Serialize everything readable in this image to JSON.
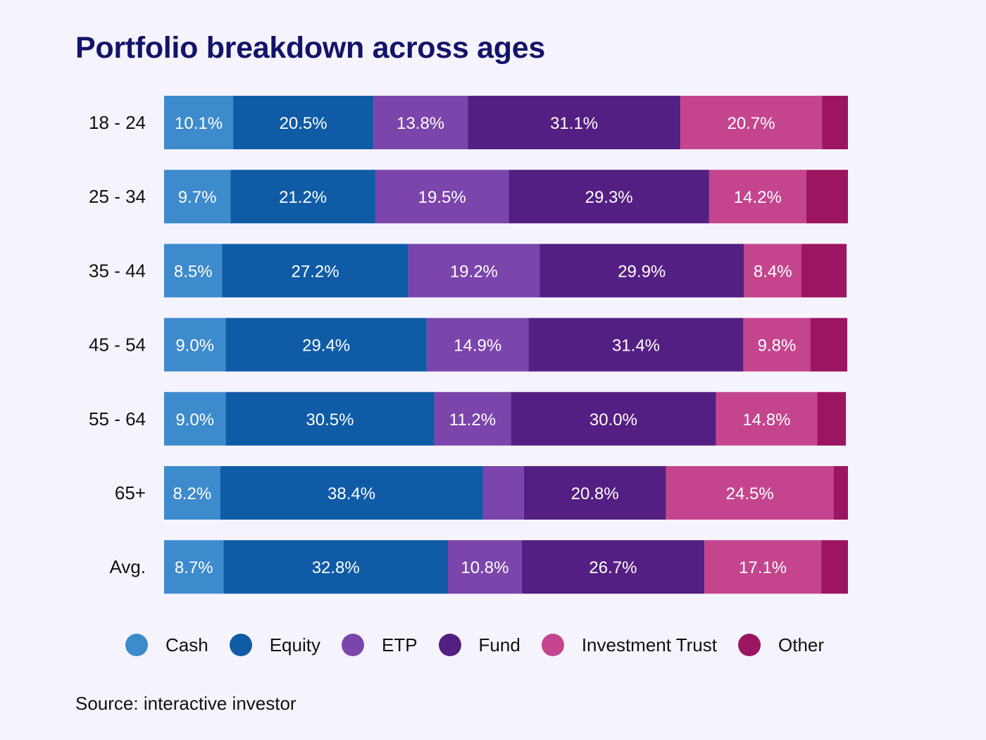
{
  "chart_data": {
    "type": "bar",
    "orientation": "horizontal",
    "stacked": true,
    "title": "Portfolio breakdown across ages",
    "categories": [
      "18 - 24",
      "25 - 34",
      "35 - 44",
      "45 - 54",
      "55 - 64",
      "65+",
      "Avg."
    ],
    "series": [
      {
        "name": "Cash",
        "color": "#3d8acd",
        "values": [
          10.1,
          9.7,
          8.5,
          9.0,
          9.0,
          8.2,
          8.7
        ],
        "labels": [
          "10.1%",
          "9.7%",
          "8.5%",
          "9.0%",
          "9.0%",
          "8.2%",
          "8.7%"
        ]
      },
      {
        "name": "Equity",
        "color": "#0f5ba6",
        "values": [
          20.5,
          21.2,
          27.2,
          29.4,
          30.5,
          38.4,
          32.8
        ],
        "labels": [
          "20.5%",
          "21.2%",
          "27.2%",
          "29.4%",
          "30.5%",
          "38.4%",
          "32.8%"
        ]
      },
      {
        "name": "ETP",
        "color": "#7b45ab",
        "values": [
          13.8,
          19.5,
          19.2,
          14.9,
          11.2,
          6.0,
          10.8
        ],
        "labels": [
          "13.8%",
          "19.5%",
          "19.2%",
          "14.9%",
          "11.2%",
          "",
          "10.8%"
        ]
      },
      {
        "name": "Fund",
        "color": "#541f82",
        "values": [
          31.1,
          29.3,
          29.9,
          31.4,
          30.0,
          20.8,
          26.7
        ],
        "labels": [
          "31.1%",
          "29.3%",
          "29.9%",
          "31.4%",
          "30.0%",
          "20.8%",
          "26.7%"
        ]
      },
      {
        "name": "Investment Trust",
        "color": "#c4458d",
        "values": [
          20.7,
          14.2,
          8.4,
          9.8,
          14.8,
          24.5,
          17.1
        ],
        "labels": [
          "20.7%",
          "14.2%",
          "8.4%",
          "9.8%",
          "14.8%",
          "24.5%",
          "17.1%"
        ]
      },
      {
        "name": "Other",
        "color": "#9c1560",
        "values": [
          3.8,
          6.1,
          6.6,
          5.4,
          4.2,
          2.1,
          3.9
        ],
        "labels": [
          "",
          "",
          "",
          "",
          "",
          "",
          ""
        ]
      }
    ],
    "xlim": [
      0,
      100
    ],
    "xlabel": "",
    "ylabel": "",
    "legend": "bottom"
  },
  "source": "Source: interactive investor"
}
